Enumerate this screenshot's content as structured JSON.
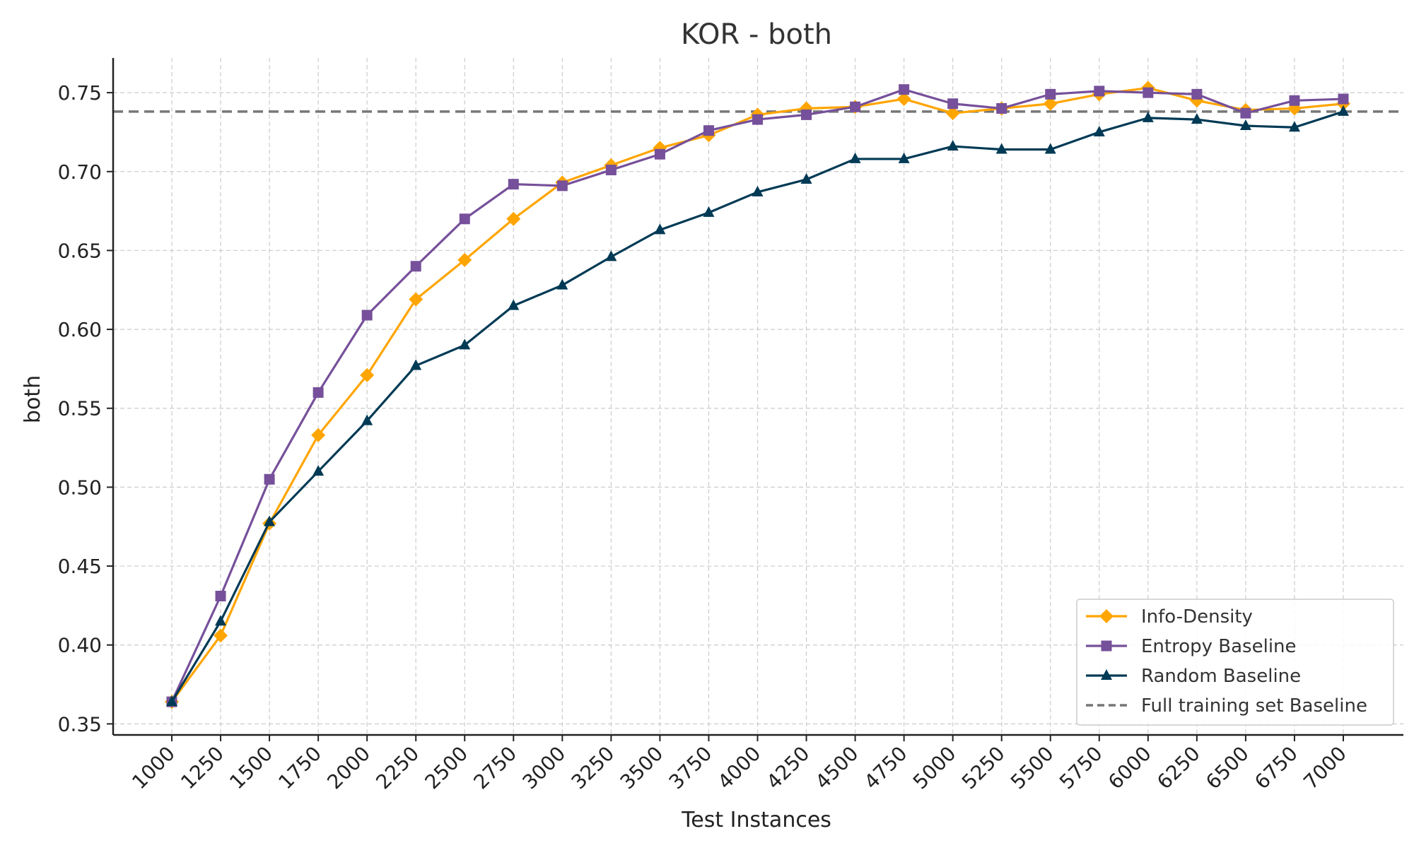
{
  "chart_data": {
    "type": "line",
    "title": "KOR - both",
    "xlabel": "Test Instances",
    "ylabel": "both",
    "x": [
      1000,
      1250,
      1500,
      1750,
      2000,
      2250,
      2500,
      2750,
      3000,
      3250,
      3500,
      3750,
      4000,
      4250,
      4500,
      4750,
      5000,
      5250,
      5500,
      5750,
      6000,
      6250,
      6500,
      6750,
      7000
    ],
    "x_tick_labels": [
      "1000",
      "1250",
      "1500",
      "1750",
      "2000",
      "2250",
      "2500",
      "2750",
      "3000",
      "3250",
      "3500",
      "3750",
      "4000",
      "4250",
      "4500",
      "4750",
      "5000",
      "5250",
      "5500",
      "5750",
      "6000",
      "6250",
      "6500",
      "6750",
      "7000"
    ],
    "ylim": [
      0.343,
      0.772
    ],
    "y_ticks": [
      0.35,
      0.4,
      0.45,
      0.5,
      0.55,
      0.6,
      0.65,
      0.7,
      0.75
    ],
    "y_tick_labels": [
      "0.35",
      "0.40",
      "0.45",
      "0.50",
      "0.55",
      "0.60",
      "0.65",
      "0.70",
      "0.75"
    ],
    "grid": true,
    "legend_position": "bottom-right",
    "series": [
      {
        "name": "Info-Density",
        "color": "#FFA500",
        "marker": "diamond",
        "values": [
          0.364,
          0.406,
          0.477,
          0.533,
          0.571,
          0.619,
          0.644,
          0.67,
          0.693,
          0.704,
          0.715,
          0.723,
          0.736,
          0.74,
          0.741,
          0.746,
          0.737,
          0.74,
          0.743,
          0.749,
          0.753,
          0.745,
          0.739,
          0.74,
          0.743
        ]
      },
      {
        "name": "Entropy Baseline",
        "color": "#76509A",
        "marker": "square",
        "values": [
          0.364,
          0.431,
          0.505,
          0.56,
          0.609,
          0.64,
          0.67,
          0.692,
          0.691,
          0.701,
          0.711,
          0.726,
          0.733,
          0.736,
          0.741,
          0.752,
          0.743,
          0.74,
          0.749,
          0.751,
          0.75,
          0.749,
          0.737,
          0.745,
          0.746
        ]
      },
      {
        "name": "Random Baseline",
        "color": "#003A55",
        "marker": "triangle",
        "values": [
          0.364,
          0.415,
          0.478,
          0.51,
          0.542,
          0.577,
          0.59,
          0.615,
          0.628,
          0.646,
          0.663,
          0.674,
          0.687,
          0.695,
          0.708,
          0.708,
          0.716,
          0.714,
          0.714,
          0.725,
          0.734,
          0.733,
          0.729,
          0.728,
          0.738
        ]
      }
    ],
    "reference_line": {
      "name": "Full training set Baseline",
      "value": 0.738,
      "color": "#777777",
      "style": "dashed"
    }
  }
}
